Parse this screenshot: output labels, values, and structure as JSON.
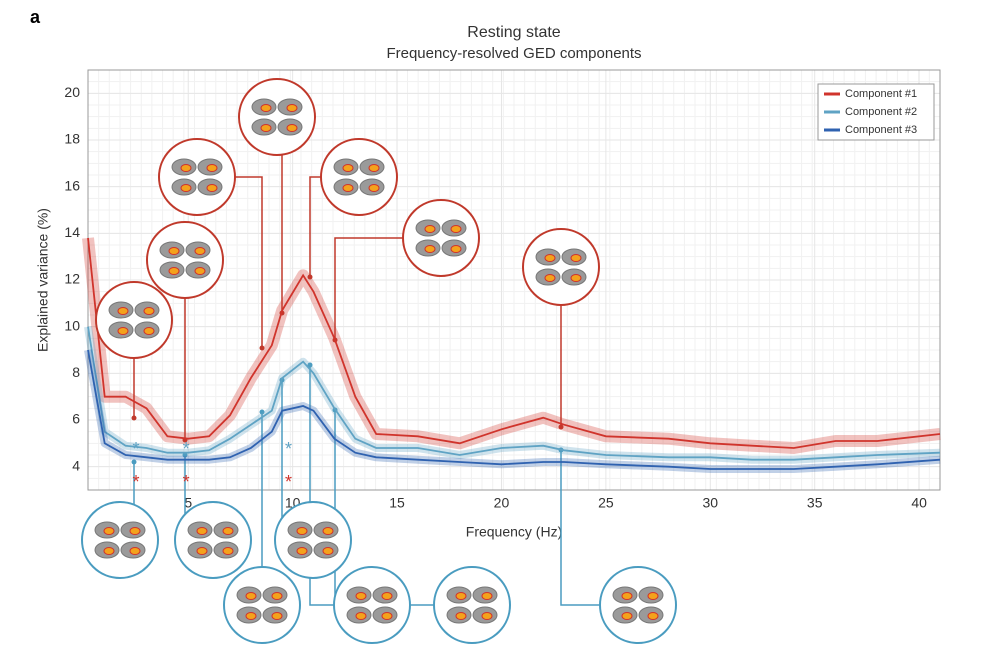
{
  "chart_data": {
    "type": "line",
    "panel_label": "a",
    "title": "Resting state",
    "subtitle": "Frequency-resolved GED components",
    "x_label": "Frequency (Hz)",
    "y_label": "Explained variance (%)",
    "xlim": [
      0.2,
      41
    ],
    "ylim": [
      3,
      21
    ],
    "xticks": [
      5,
      10,
      15,
      20,
      25,
      30,
      35,
      40
    ],
    "yticks": [
      4,
      6,
      8,
      10,
      12,
      14,
      16,
      18,
      20
    ],
    "grid": true,
    "legend": "upper right",
    "x": [
      0.2,
      1,
      2,
      3,
      4,
      5,
      6,
      7,
      8,
      9,
      9.5,
      10.5,
      11,
      12,
      13,
      14,
      16,
      18,
      20,
      22,
      23,
      25,
      28,
      30,
      32,
      34,
      36,
      38,
      41
    ],
    "series": [
      {
        "name": "Component #1",
        "color": "#d0342c",
        "values": [
          13.8,
          7,
          7,
          6.5,
          5.3,
          5.2,
          5.3,
          6.2,
          7.8,
          9.2,
          10.7,
          12.2,
          11.5,
          9.5,
          7,
          5.4,
          5.3,
          5,
          5.6,
          6.1,
          5.8,
          5.3,
          5.2,
          5,
          4.9,
          4.8,
          5.1,
          5.1,
          5.4
        ]
      },
      {
        "name": "Component #2",
        "color": "#5fa3c4",
        "values": [
          10,
          5.5,
          4.9,
          4.8,
          4.6,
          4.6,
          4.7,
          5.2,
          5.8,
          6.4,
          7.8,
          8.5,
          8,
          6.5,
          5.2,
          4.8,
          4.8,
          4.5,
          4.8,
          4.9,
          4.7,
          4.5,
          4.4,
          4.4,
          4.3,
          4.3,
          4.4,
          4.5,
          4.6
        ]
      },
      {
        "name": "Component #3",
        "color": "#2f62b0",
        "values": [
          9,
          5,
          4.5,
          4.4,
          4.3,
          4.3,
          4.3,
          4.4,
          4.8,
          5.5,
          6.4,
          6.6,
          6.4,
          5.2,
          4.6,
          4.4,
          4.3,
          4.2,
          4.1,
          4.2,
          4.2,
          4.1,
          4,
          3.9,
          3.9,
          3.9,
          4,
          4.1,
          4.3
        ]
      }
    ],
    "annotations": [
      {
        "x": 2.5,
        "y": 4.7,
        "label": "*",
        "color": "#5fa3c4"
      },
      {
        "x": 2.5,
        "y": 3.3,
        "label": "*",
        "color": "#d0342c"
      },
      {
        "x": 4.9,
        "y": 4.7,
        "label": "*",
        "color": "#5fa3c4"
      },
      {
        "x": 4.9,
        "y": 3.3,
        "label": "*",
        "color": "#d0342c"
      },
      {
        "x": 9.8,
        "y": 4.7,
        "label": "*",
        "color": "#5fa3c4"
      },
      {
        "x": 9.8,
        "y": 3.3,
        "label": "*",
        "color": "#d0342c"
      }
    ]
  }
}
